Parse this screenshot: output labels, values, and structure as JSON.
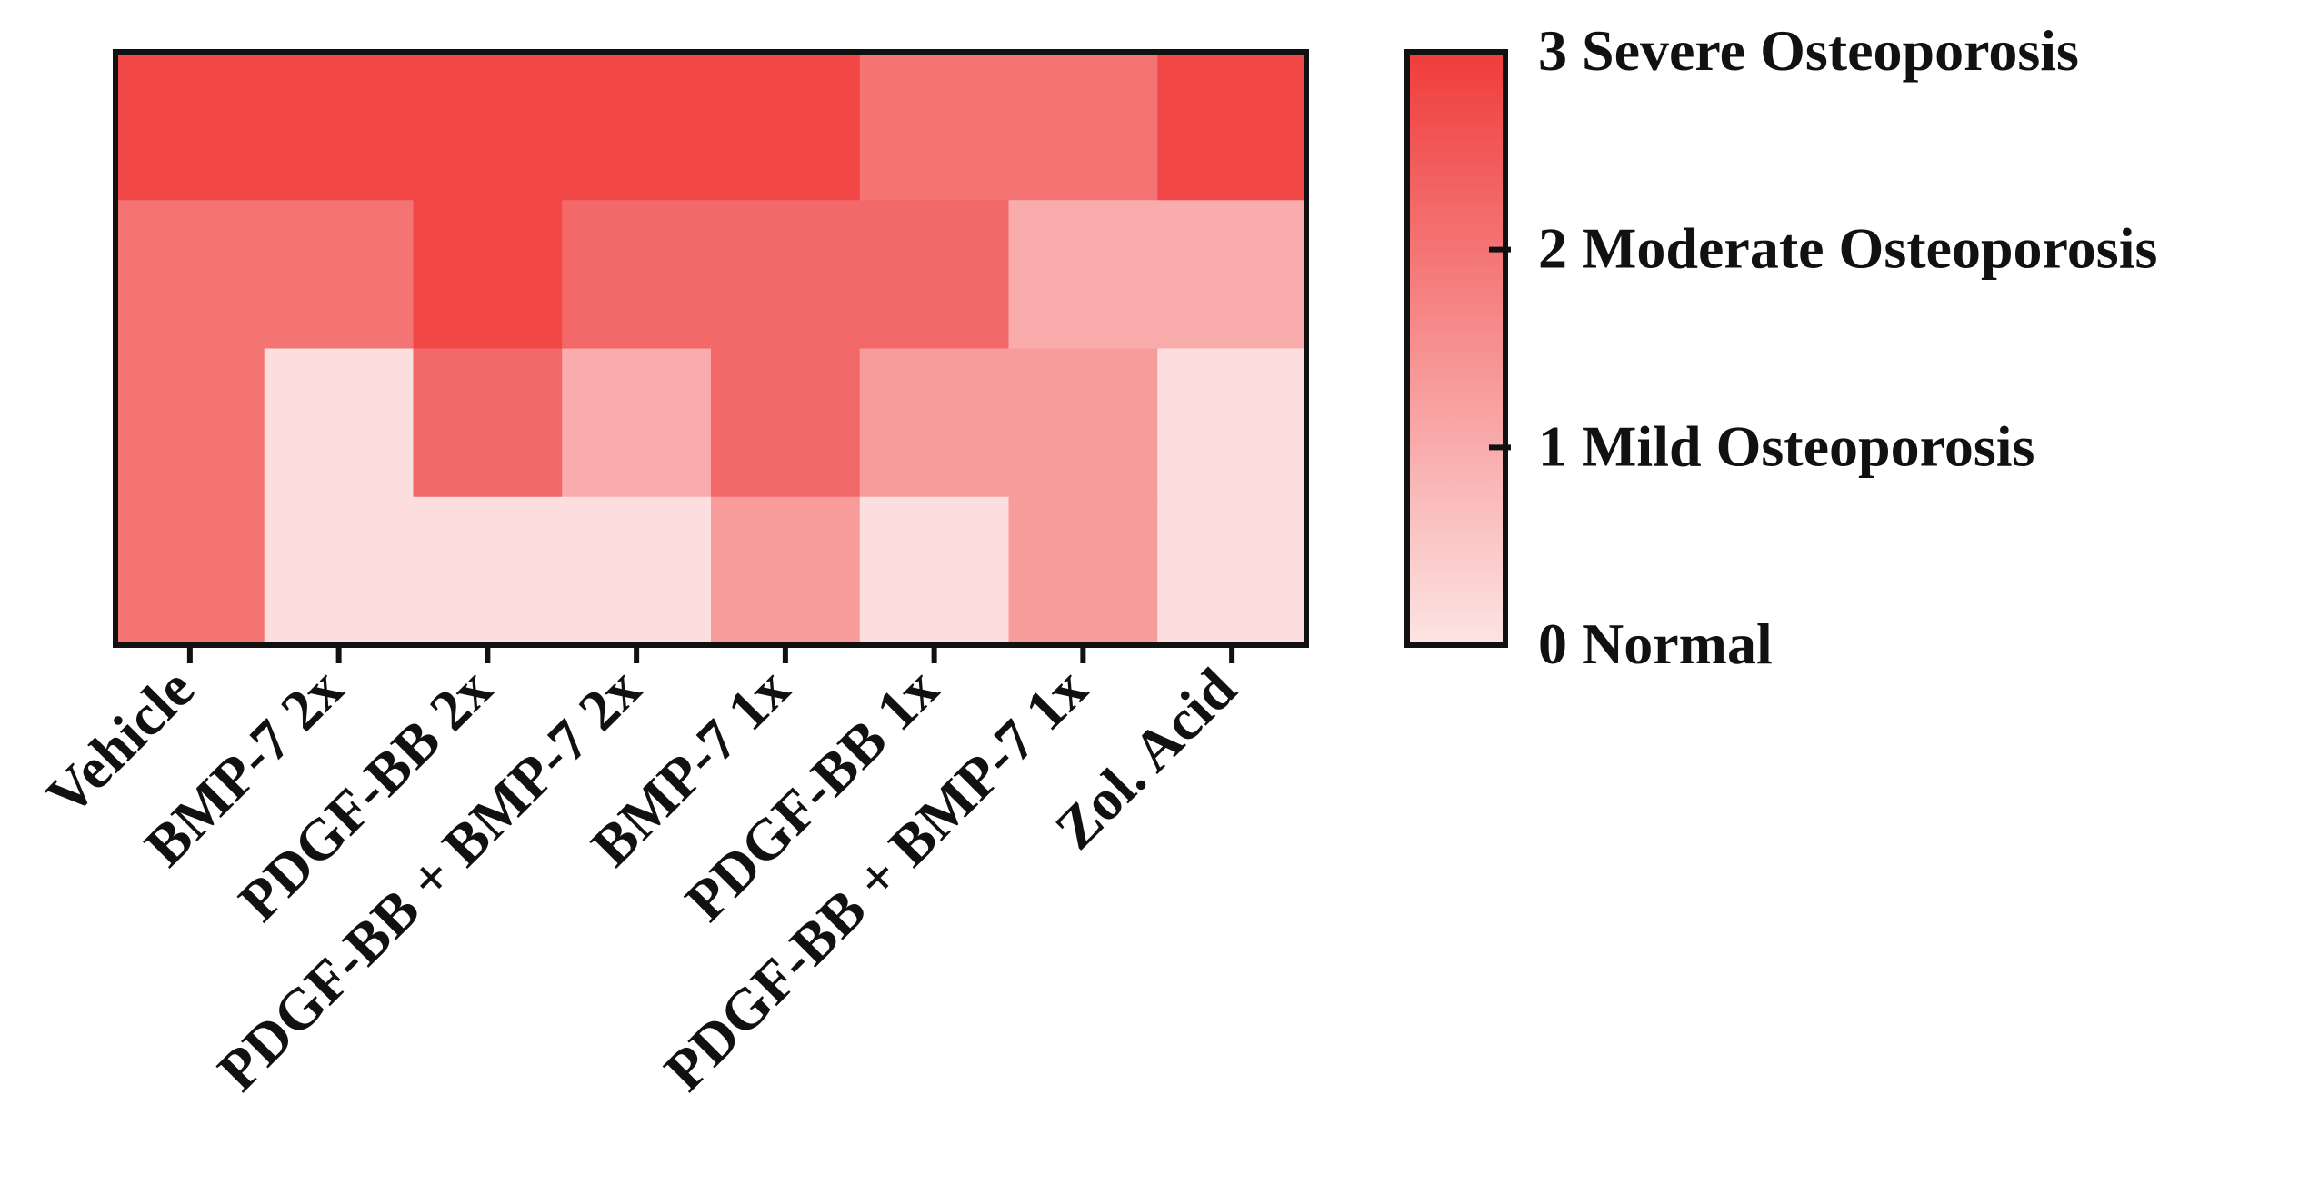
{
  "chart_data": {
    "type": "heatmap",
    "categories": [
      "Vehicle",
      "BMP-7 2x",
      "PDGF-BB 2x",
      "PDGF-BB + BMP-7  2x",
      "BMP-7 1x",
      "PDGF-BB 1x",
      "PDGF-BB + BMP-7 1x",
      "Zol. Acid"
    ],
    "rows": 4,
    "values": [
      [
        2.8,
        2.8,
        2.8,
        2.8,
        2.8,
        2.0,
        2.0,
        2.8
      ],
      [
        2.0,
        2.0,
        2.8,
        2.2,
        2.2,
        2.2,
        1.0,
        1.0
      ],
      [
        2.0,
        0.1,
        2.2,
        1.0,
        2.2,
        1.3,
        1.3,
        0.1
      ],
      [
        2.0,
        0.1,
        0.1,
        0.1,
        1.3,
        0.1,
        1.3,
        0.1
      ]
    ],
    "colorscale": {
      "min": 0,
      "max": 3,
      "low_color": "#fde4e4",
      "high_color": "#f03c3c",
      "ticks": [
        {
          "value": 0,
          "label": "0  Normal"
        },
        {
          "value": 1,
          "label": "1  Mild Osteoporosis"
        },
        {
          "value": 2,
          "label": "2  Moderate Osteoporosis"
        },
        {
          "value": 3,
          "label": "3  Severe Osteoporosis"
        }
      ]
    },
    "title": "",
    "xlabel": "",
    "ylabel": "",
    "legend": "right"
  }
}
